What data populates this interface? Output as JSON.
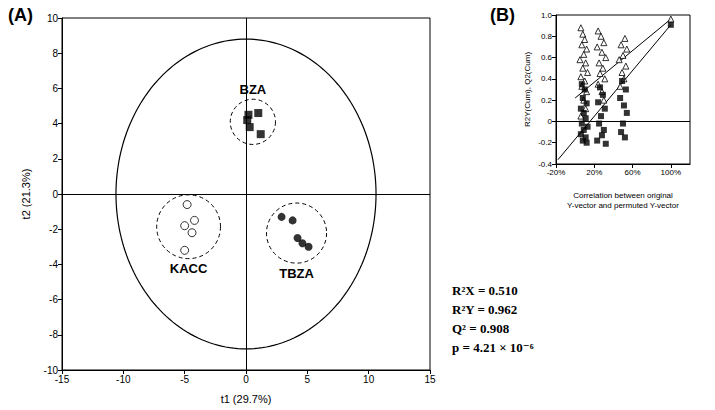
{
  "chart_data": [
    {
      "type": "scatter",
      "panel": "(A)",
      "x_label": "t1 (29.7%)",
      "y_label": "t2 (21.3%)",
      "xlim": [
        -15,
        15
      ],
      "xticks": [
        -15,
        -10,
        -5,
        0,
        5,
        10,
        15
      ],
      "ylim": [
        -10,
        10
      ],
      "yticks": [
        -10,
        -8,
        -6,
        -4,
        -2,
        0,
        2,
        4,
        6,
        8,
        10
      ],
      "ellipse": {
        "x_radius": 10.6,
        "y_radius": 8.8
      },
      "annotations": [
        "R²X = 0.510",
        "R²Y = 0.962",
        "Q² = 0.908",
        "p = 4.21 × 10⁻⁶"
      ],
      "series": [
        {
          "name": "BZA",
          "type": "scatter",
          "marker": "square",
          "color": "#000000",
          "x": [
            0.2,
            1.0,
            0.1,
            0.3,
            1.2
          ],
          "values": [
            4.5,
            4.6,
            4.2,
            3.8,
            3.4
          ]
        },
        {
          "name": "KACC",
          "type": "scatter",
          "marker": "open_circle",
          "color": "#000000",
          "x": [
            -4.8,
            -4.2,
            -5.0,
            -4.4,
            -5.0
          ],
          "values": [
            -0.6,
            -1.5,
            -1.8,
            -2.2,
            -3.2
          ]
        },
        {
          "name": "TBZA",
          "type": "scatter",
          "marker": "circle",
          "color": "#000000",
          "x": [
            2.9,
            3.8,
            4.2,
            4.6,
            5.1
          ],
          "values": [
            -1.3,
            -1.5,
            -2.5,
            -2.8,
            -3.0
          ]
        }
      ]
    },
    {
      "type": "scatter",
      "panel": "(B)",
      "x_label": "Correlation between original\nY-vector and permuted Y-vector",
      "y_label": "R2Y(Cum), Q2(Cum)",
      "xlim": [
        -20,
        120
      ],
      "xticks": [
        {
          "value": -20,
          "label": "-20%"
        },
        {
          "value": 20,
          "label": "20%"
        },
        {
          "value": 60,
          "label": "60%"
        },
        {
          "value": 100,
          "label": "100%"
        }
      ],
      "ylim": [
        -0.4,
        1
      ],
      "yticks": [
        -0.4,
        -0.2,
        0,
        0.2,
        0.4,
        0.6,
        0.8,
        {
          "value": 1,
          "label": "1.0"
        }
      ],
      "series": [
        {
          "type": "scatter",
          "marker": "open_triangle",
          "color": "#000000",
          "x": [
            6,
            8,
            10,
            7,
            12,
            9,
            5,
            11,
            8,
            13,
            6,
            10,
            7,
            12,
            9,
            11,
            6,
            24,
            27,
            30,
            23,
            28,
            32,
            25,
            29,
            26,
            31,
            24,
            28,
            30,
            52,
            48,
            54,
            50,
            46,
            53,
            49,
            51,
            47,
            100
          ],
          "values": [
            0.88,
            0.82,
            0.77,
            0.72,
            0.68,
            0.63,
            0.58,
            0.55,
            0.5,
            0.46,
            0.42,
            0.38,
            0.33,
            0.28,
            0.2,
            0.12,
            0.05,
            0.85,
            0.8,
            0.74,
            0.7,
            0.65,
            0.6,
            0.55,
            0.5,
            0.45,
            0.4,
            0.35,
            0.28,
            0.2,
            0.78,
            0.72,
            0.68,
            0.62,
            0.58,
            0.52,
            0.46,
            0.4,
            0.33,
            0.962
          ]
        },
        {
          "type": "scatter",
          "marker": "square",
          "color": "#000000",
          "x": [
            7,
            10,
            8,
            12,
            6,
            9,
            11,
            7,
            13,
            9,
            6,
            11,
            8,
            12,
            26,
            29,
            24,
            31,
            27,
            25,
            30,
            28,
            23,
            32,
            49,
            53,
            47,
            51,
            54,
            50,
            48,
            52,
            100
          ],
          "values": [
            0.35,
            0.3,
            0.22,
            0.17,
            0.12,
            0.08,
            0.03,
            -0.02,
            -0.05,
            -0.08,
            -0.12,
            -0.15,
            -0.18,
            -0.2,
            0.32,
            0.25,
            0.18,
            0.12,
            0.05,
            -0.02,
            -0.08,
            -0.13,
            -0.18,
            -0.21,
            0.38,
            0.3,
            0.22,
            0.15,
            0.08,
            -0.02,
            -0.1,
            -0.15,
            0.908
          ]
        },
        {
          "type": "line",
          "color": "#000000",
          "x": [
            0,
            100
          ],
          "values": [
            0.22,
            0.962
          ]
        },
        {
          "type": "line",
          "color": "#000000",
          "x": [
            -18,
            100
          ],
          "values": [
            -0.36,
            0.908
          ]
        }
      ]
    }
  ]
}
